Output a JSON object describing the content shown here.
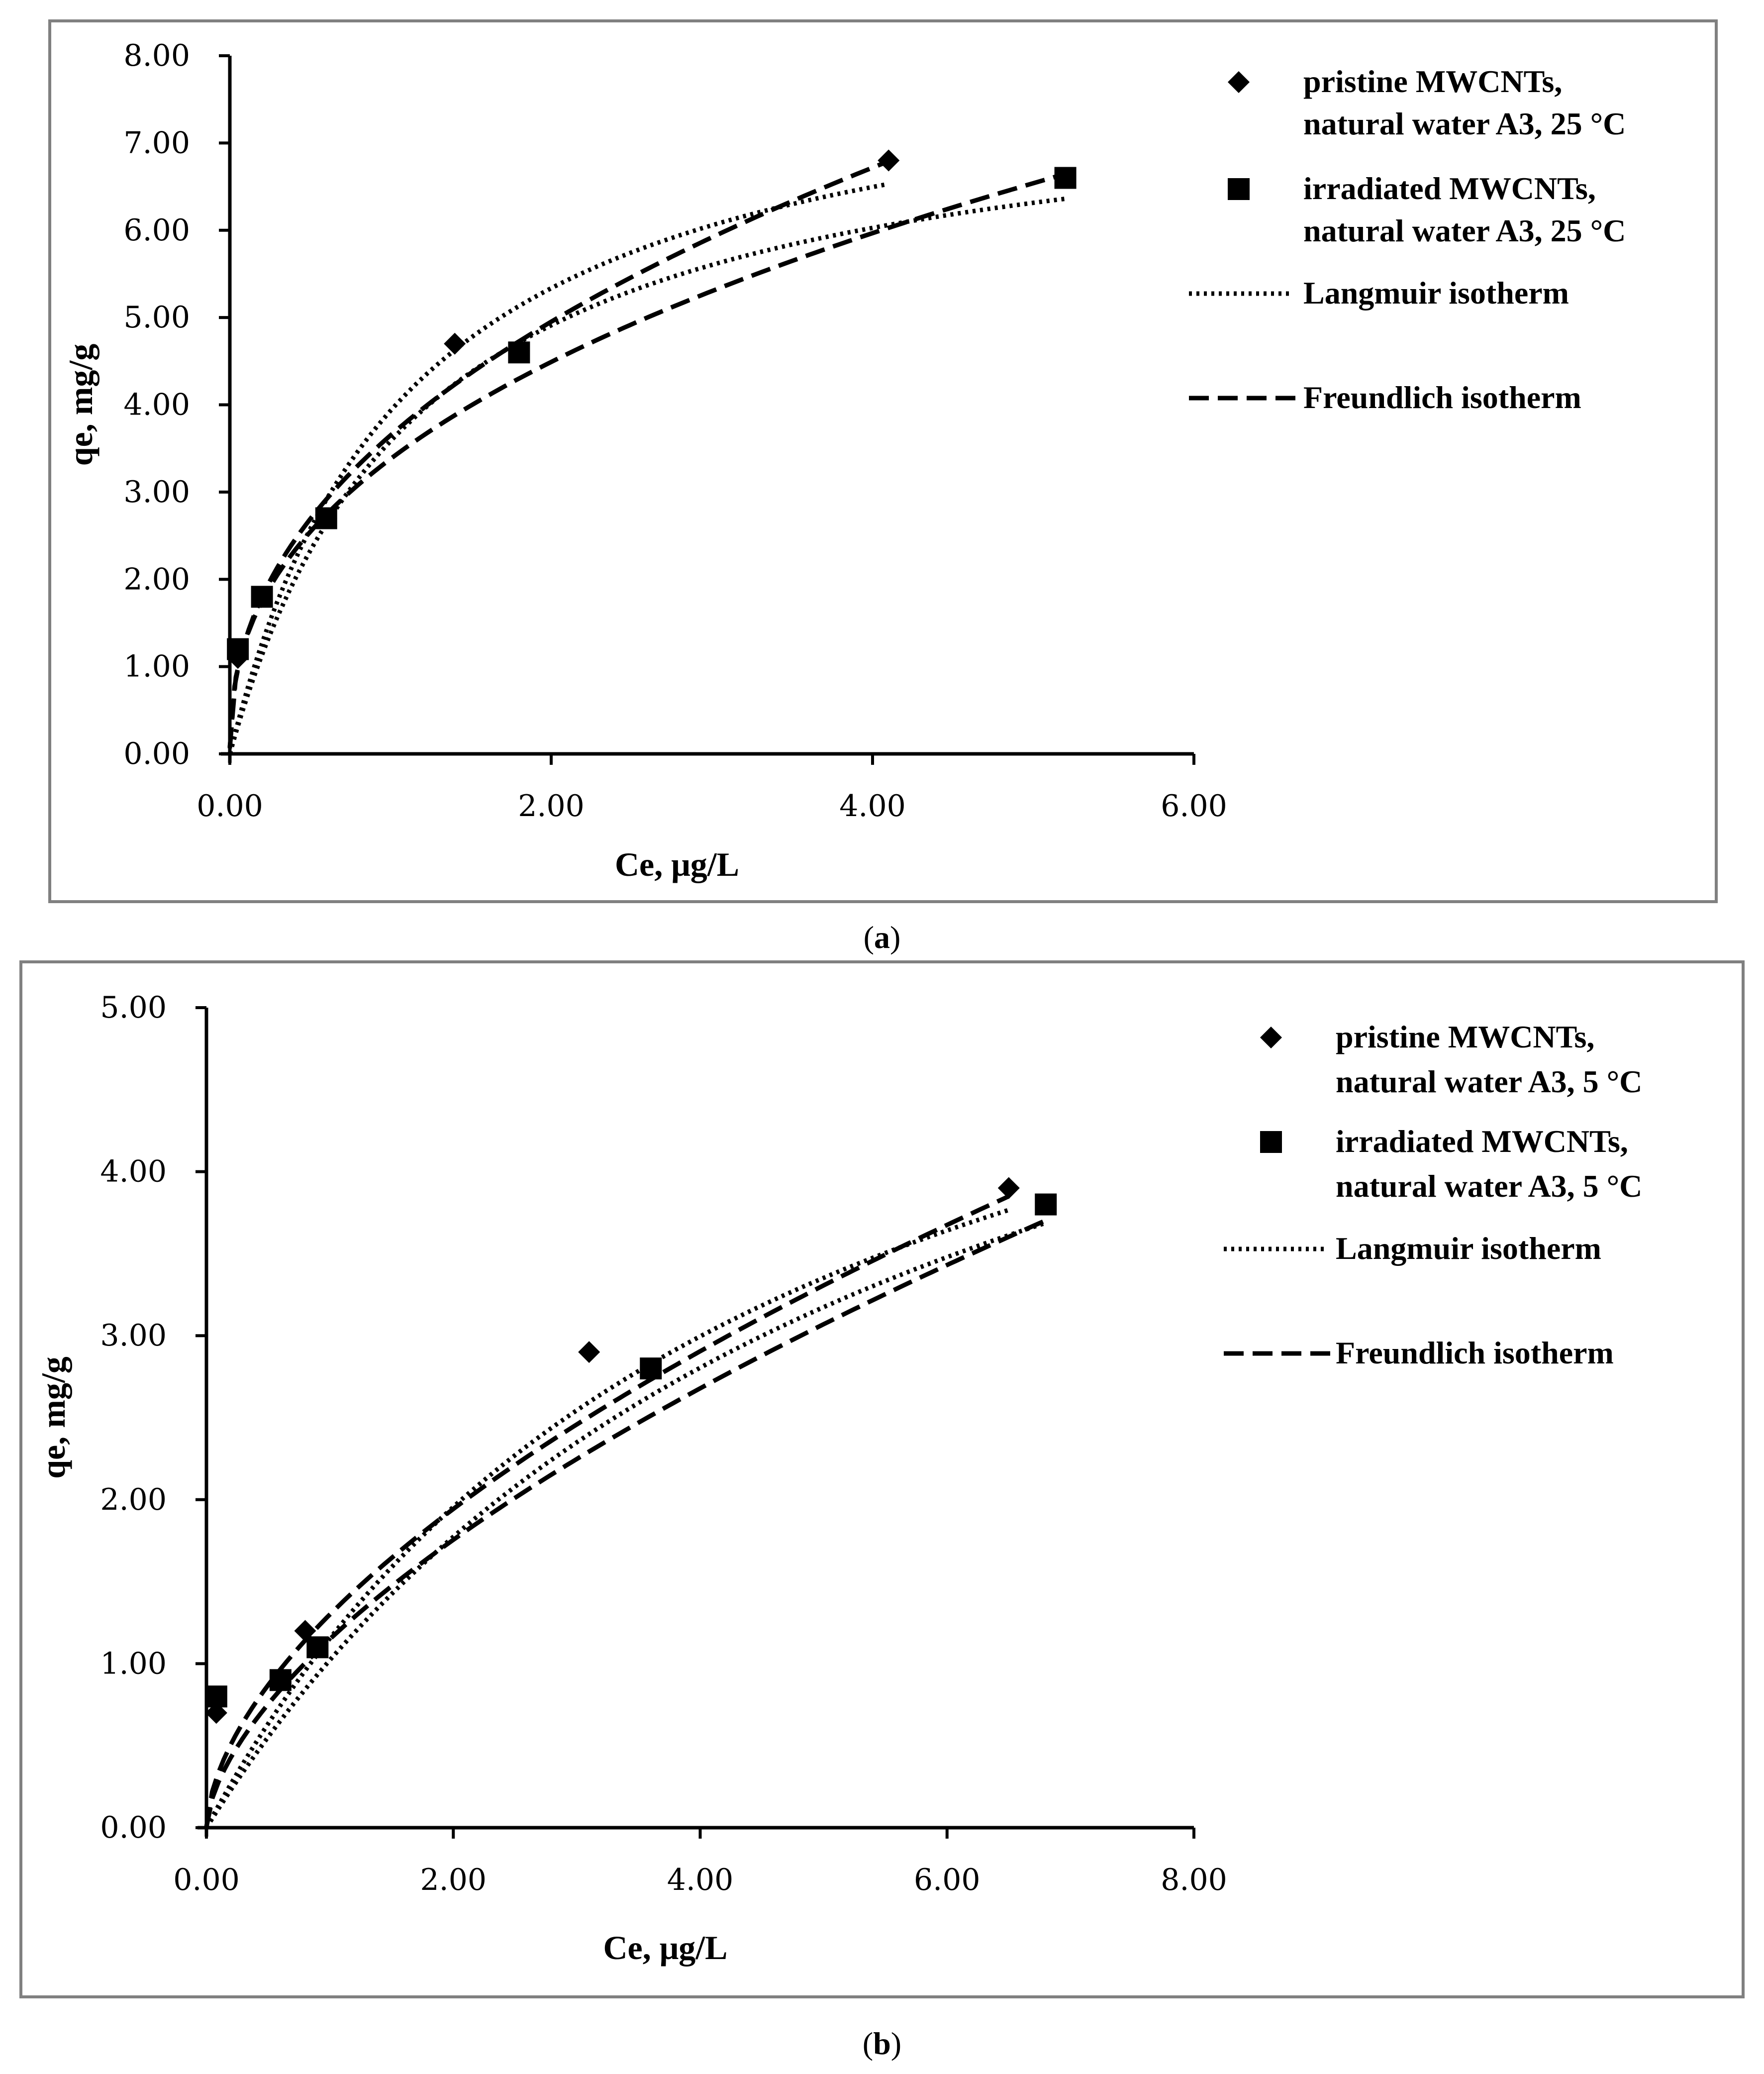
{
  "chart_data": [
    {
      "type": "scatter",
      "panel": "a",
      "caption_label": "a",
      "xlabel": "Ce, μg/L",
      "ylabel": "qe, mg/g",
      "xlim": [
        0,
        6
      ],
      "ylim": [
        0,
        8
      ],
      "xticks": [
        "0.00",
        "2.00",
        "4.00",
        "6.00"
      ],
      "yticks": [
        "0.00",
        "1.00",
        "2.00",
        "3.00",
        "4.00",
        "5.00",
        "6.00",
        "7.00",
        "8.00"
      ],
      "series": [
        {
          "name_line1": "pristine MWCNTs,",
          "name_line2": "natural water A3, 25 °C",
          "marker": "diamond",
          "x": [
            0.05,
            0.2,
            0.6,
            1.4,
            4.1
          ],
          "y": [
            1.1,
            1.8,
            2.7,
            4.7,
            6.8
          ]
        },
        {
          "name_line1": "irradiated MWCNTs,",
          "name_line2": "natural water A3, 25 °C",
          "marker": "square",
          "x": [
            0.05,
            0.2,
            0.6,
            1.8,
            5.2
          ],
          "y": [
            1.2,
            1.8,
            2.7,
            4.6,
            6.6
          ]
        }
      ],
      "fits": [
        {
          "name": "Langmuir isotherm",
          "style": "dotted",
          "model": "langmuir",
          "qmax": 8.3,
          "k": 0.9,
          "xmax": 4.1
        },
        {
          "name": "Langmuir isotherm",
          "style": "dotted",
          "model": "langmuir",
          "qmax": 7.8,
          "k": 0.85,
          "xmax": 5.2
        },
        {
          "name": "Freundlich isotherm",
          "style": "dashed",
          "model": "freundlich",
          "kf": 3.65,
          "n": 0.44,
          "xmax": 4.1
        },
        {
          "name": "Freundlich isotherm",
          "style": "dashed",
          "model": "freundlich",
          "kf": 3.38,
          "n": 0.41,
          "xmax": 5.2
        }
      ],
      "legend": {
        "langmuir": "Langmuir isotherm",
        "freundlich": "Freundlich isotherm"
      }
    },
    {
      "type": "scatter",
      "panel": "b",
      "caption_label": "b",
      "xlabel": "Ce, μg/L",
      "ylabel": "qe, mg/g",
      "xlim": [
        0,
        8
      ],
      "ylim": [
        0,
        5
      ],
      "xticks": [
        "0.00",
        "2.00",
        "4.00",
        "6.00",
        "8.00"
      ],
      "yticks": [
        "0.00",
        "1.00",
        "2.00",
        "3.00",
        "4.00",
        "5.00"
      ],
      "series": [
        {
          "name_line1": "pristine MWCNTs,",
          "name_line2": "natural water A3, 5 °C",
          "marker": "diamond",
          "x": [
            0.08,
            0.6,
            0.8,
            3.1,
            6.5
          ],
          "y": [
            0.7,
            0.9,
            1.2,
            2.9,
            3.9
          ]
        },
        {
          "name_line1": "irradiated MWCNTs,",
          "name_line2": "natural water A3, 5 °C",
          "marker": "square",
          "x": [
            0.08,
            0.6,
            0.9,
            3.6,
            6.8
          ],
          "y": [
            0.8,
            0.9,
            1.1,
            2.8,
            3.8
          ]
        }
      ],
      "fits": [
        {
          "name": "Langmuir isotherm",
          "style": "dotted",
          "model": "langmuir",
          "qmax": 6.4,
          "k": 0.22,
          "xmax": 6.5
        },
        {
          "name": "Langmuir isotherm",
          "style": "dotted",
          "model": "langmuir",
          "qmax": 6.7,
          "k": 0.18,
          "xmax": 6.8
        },
        {
          "name": "Freundlich isotherm",
          "style": "dashed",
          "model": "freundlich",
          "kf": 1.3,
          "n": 0.58,
          "xmax": 6.5
        },
        {
          "name": "Freundlich isotherm",
          "style": "dashed",
          "model": "freundlich",
          "kf": 1.15,
          "n": 0.61,
          "xmax": 6.8
        }
      ],
      "legend": {
        "langmuir": "Langmuir isotherm",
        "freundlich": "Freundlich isotherm"
      }
    }
  ]
}
